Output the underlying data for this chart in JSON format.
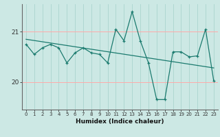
{
  "xlabel": "Humidex (Indice chaleur)",
  "background_color": "#cce8e4",
  "grid_color_v": "#aad4ce",
  "grid_color_h": "#ffaaaa",
  "line_color": "#1a7a6e",
  "x_values": [
    0,
    1,
    2,
    3,
    4,
    5,
    6,
    7,
    8,
    9,
    10,
    11,
    12,
    13,
    14,
    15,
    16,
    17,
    18,
    19,
    20,
    21,
    22,
    23
  ],
  "y_values": [
    20.75,
    20.55,
    20.68,
    20.75,
    20.68,
    20.38,
    20.58,
    20.68,
    20.58,
    20.55,
    20.38,
    21.05,
    20.82,
    21.4,
    20.82,
    20.38,
    19.65,
    19.65,
    20.6,
    20.6,
    20.5,
    20.52,
    21.05,
    20.02
  ],
  "ylim": [
    19.45,
    21.55
  ],
  "yticks": [
    20,
    21
  ],
  "xlim": [
    -0.5,
    23.5
  ],
  "trend_start_y": 20.85,
  "trend_end_y": 20.28
}
